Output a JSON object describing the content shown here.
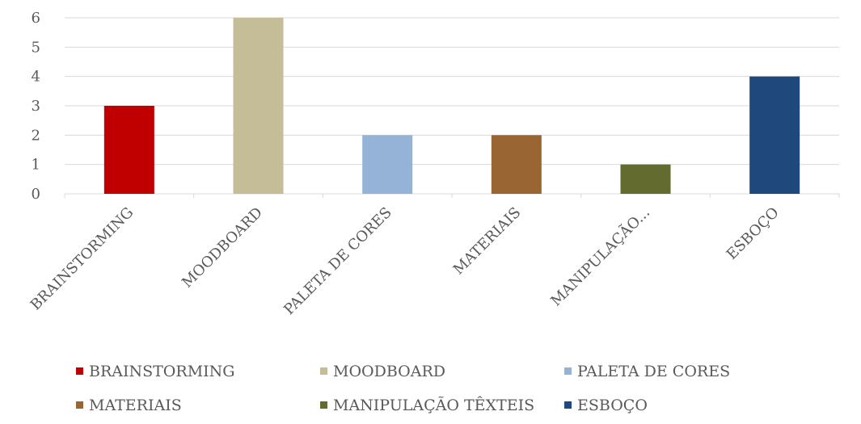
{
  "chart_data": {
    "type": "bar",
    "categories": [
      "BRAINSTORMING",
      "MOODBOARD",
      "PALETA DE CORES",
      "MATERIAIS",
      "MANIPULAÇÃO TÊXTEIS",
      "ESBOÇO"
    ],
    "category_tick_labels": [
      "BRAINSTORMING",
      "MOODBOARD",
      "PALETA DE CORES",
      "MATERIAIS",
      "MANIPULAÇÃO...",
      "ESBOÇO"
    ],
    "values": [
      3,
      6,
      2,
      2,
      1,
      4
    ],
    "colors": [
      "#c00000",
      "#c4bd97",
      "#95b3d7",
      "#996633",
      "#636b2f",
      "#1f497d"
    ],
    "ylim": [
      0,
      6
    ],
    "y_ticks": [
      "0",
      "1",
      "2",
      "3",
      "4",
      "5",
      "6"
    ],
    "grid": true,
    "legend_position": "bottom",
    "legend": [
      "BRAINSTORMING",
      "MOODBOARD",
      "PALETA DE CORES",
      "MATERIAIS",
      "MANIPULAÇÃO TÊXTEIS",
      "ESBOÇO"
    ]
  }
}
